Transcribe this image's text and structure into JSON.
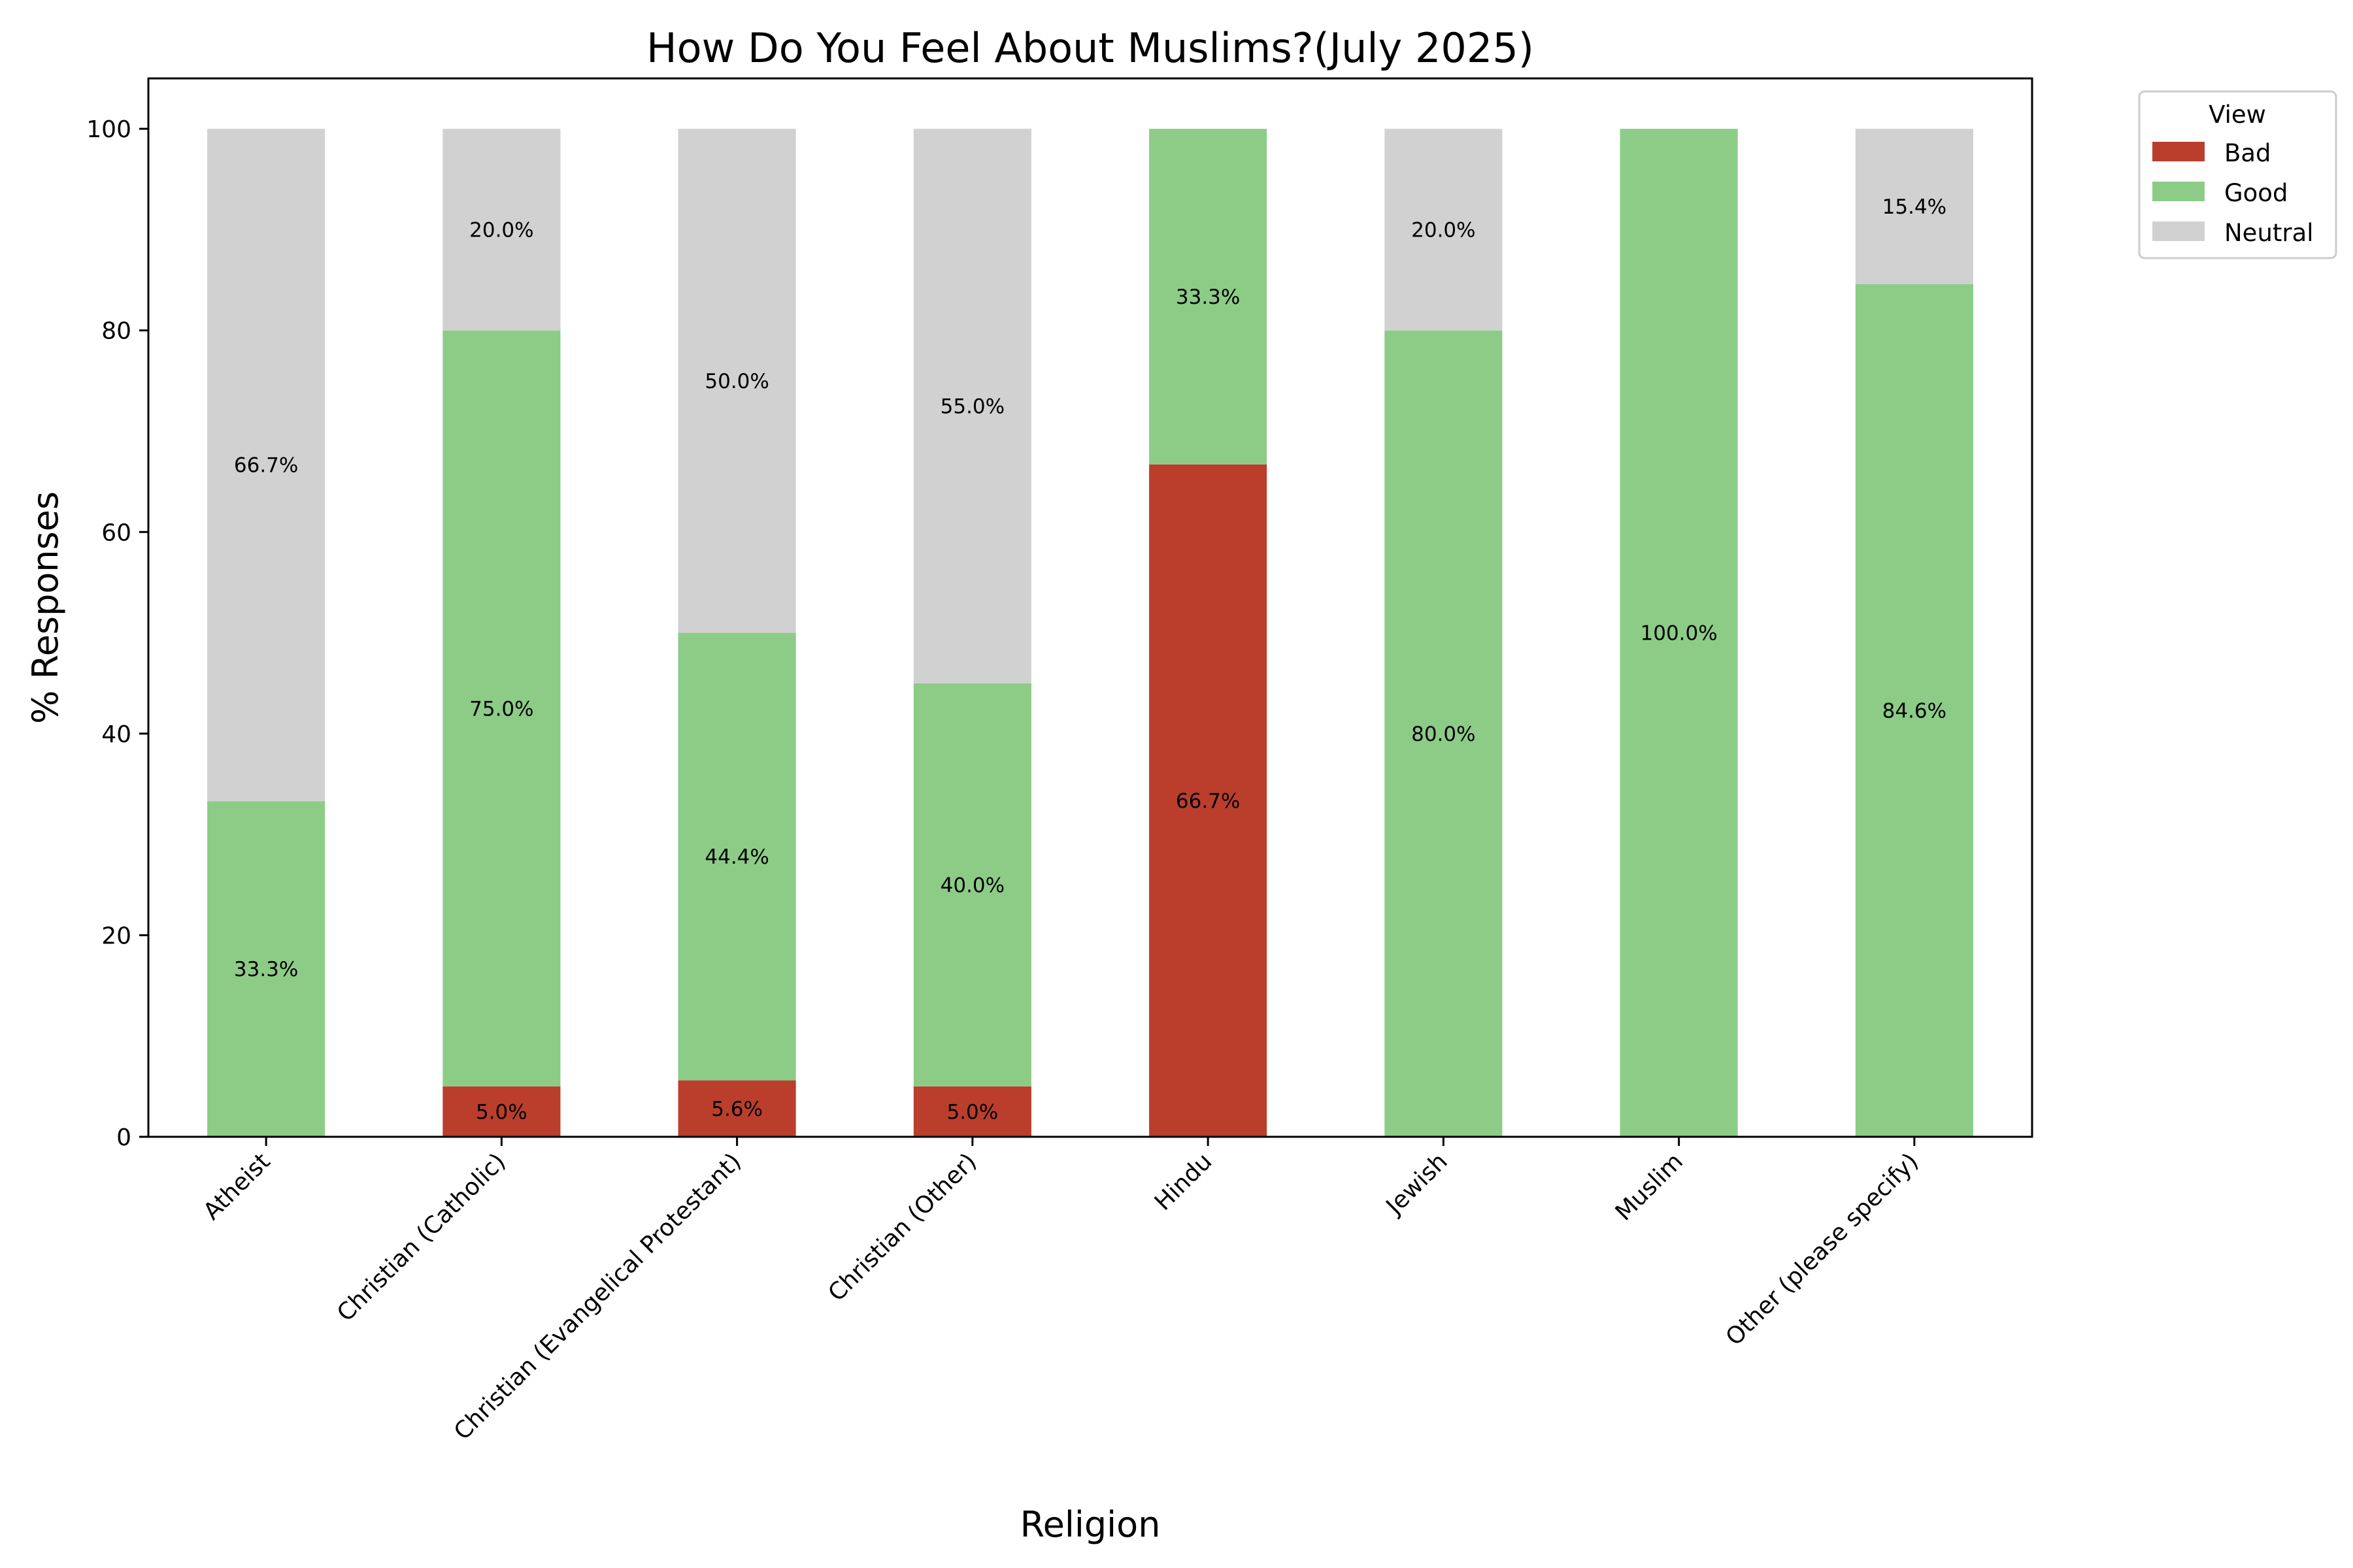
{
  "chart_data": {
    "type": "bar",
    "stacked": true,
    "title": "How Do You Feel About Muslims?(July 2025)",
    "xlabel": "Religion",
    "ylabel": "% Responses",
    "ylim": [
      0,
      105
    ],
    "yticks": [
      0,
      20,
      40,
      60,
      80,
      100
    ],
    "grid": false,
    "categories": [
      "Atheist",
      "Christian (Catholic)",
      "Christian (Evangelical Protestant)",
      "Christian (Other)",
      "Hindu",
      "Jewish",
      "Muslim",
      "Other (please specify)"
    ],
    "legend": {
      "title": "View",
      "placement": "outside-top-right"
    },
    "series": [
      {
        "name": "Bad",
        "color": "#bb3e2d",
        "values": [
          0,
          5.0,
          5.6,
          5.0,
          66.7,
          0,
          0,
          0
        ],
        "labels": [
          "",
          "5.0%",
          "5.6%",
          "5.0%",
          "66.7%",
          "",
          "",
          ""
        ]
      },
      {
        "name": "Good",
        "color": "#8dcc87",
        "values": [
          33.3,
          75.0,
          44.4,
          40.0,
          33.3,
          80.0,
          100.0,
          84.6
        ],
        "labels": [
          "33.3%",
          "75.0%",
          "44.4%",
          "40.0%",
          "33.3%",
          "80.0%",
          "100.0%",
          "84.6%"
        ]
      },
      {
        "name": "Neutral",
        "color": "#d2d1d2",
        "values": [
          66.7,
          20.0,
          50.0,
          55.0,
          0,
          20.0,
          0,
          15.4
        ],
        "labels": [
          "66.7%",
          "20.0%",
          "50.0%",
          "55.0%",
          "",
          "20.0%",
          "",
          "15.4%"
        ]
      }
    ]
  }
}
